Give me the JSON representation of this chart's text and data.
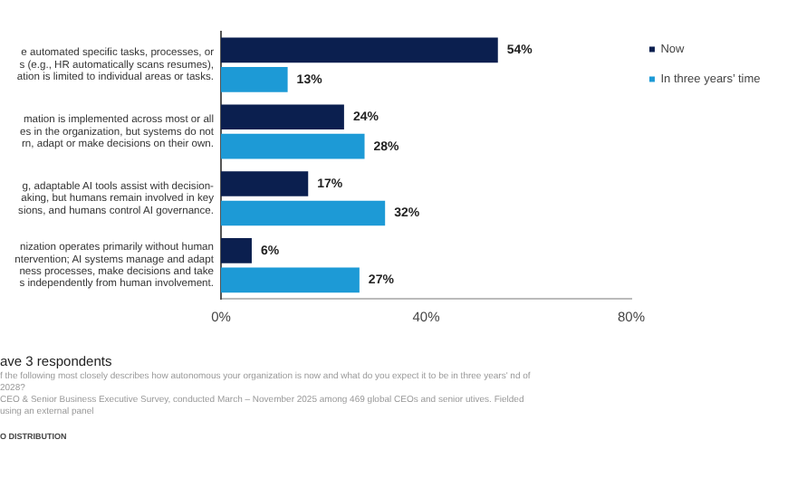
{
  "chart_data": {
    "type": "bar",
    "orientation": "horizontal",
    "categories": [
      "e automated specific tasks, processes, or\ns (e.g., HR automatically scans resumes),\nation is limited to individual areas or tasks.",
      "mation is implemented across most or all\nes in the organization, but systems do not\nrn, adapt or make decisions on their own.",
      "g, adaptable AI tools assist with decision-\naking, but humans remain involved in key\nsions, and humans control AI governance.",
      "nization operates primarily without human\nntervention; AI systems manage and adapt\nness processes, make decisions and take\ns independently from human involvement."
    ],
    "series": [
      {
        "name": "Now",
        "color": "#0b1f4f",
        "values": [
          54,
          24,
          17,
          6
        ],
        "value_labels": [
          "54%",
          "24%",
          "17%",
          "6%"
        ]
      },
      {
        "name": "In three years’ time",
        "color": "#1d9ad6",
        "values": [
          13,
          28,
          32,
          27
        ],
        "value_labels": [
          "13%",
          "28%",
          "32%",
          "27%"
        ]
      }
    ],
    "xlim": [
      0,
      80
    ],
    "xticks": [
      {
        "value": 0,
        "label": "0%"
      },
      {
        "value": 40,
        "label": "40%"
      },
      {
        "value": 80,
        "label": "80%"
      }
    ],
    "grid": false,
    "legend": "top right",
    "annotations": [
      "ave 3 respondents",
      "f the following most closely describes how autonomous your organization is now and what do you expect it to be in three years' nd of 2028?",
      "CEO & Senior Business Executive Survey, conducted March – November 2025 among 469 global CEOs and senior utives. Fielded using an external panel",
      "O DISTRIBUTION"
    ]
  }
}
